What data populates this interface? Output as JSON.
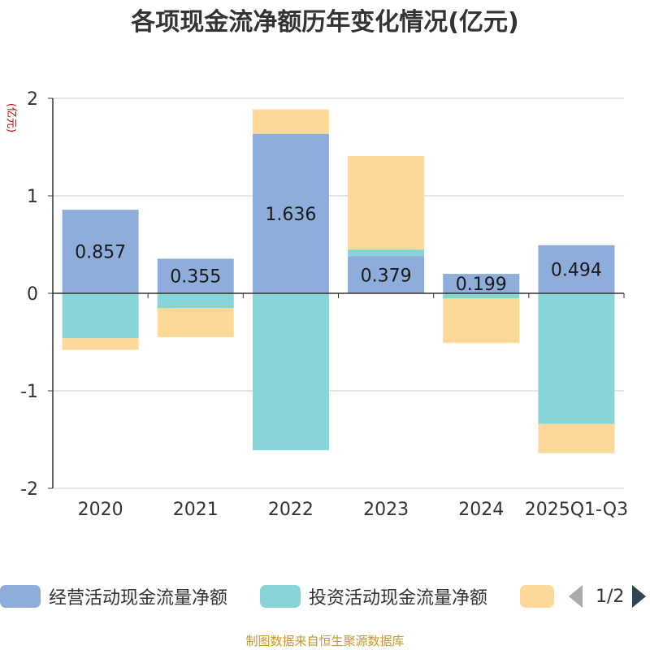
{
  "chart_data": {
    "type": "bar",
    "stacked": true,
    "title": "各项现金流净额历年变化情况(亿元)",
    "ylabel": "(亿元)",
    "ylim": [
      -2,
      2
    ],
    "yticks": [
      2,
      1,
      0,
      -1,
      -2
    ],
    "categories": [
      "2020",
      "2021",
      "2022",
      "2023",
      "2024",
      "2025Q1-Q3"
    ],
    "series": [
      {
        "name": "经营活动现金流量净额",
        "color": "#8eaddb",
        "values": [
          0.857,
          0.355,
          1.636,
          0.379,
          0.199,
          0.494
        ]
      },
      {
        "name": "投资活动现金流量净额",
        "color": "#88d5d8",
        "values": [
          -0.46,
          -0.15,
          -1.61,
          0.07,
          -0.05,
          -1.34
        ]
      },
      {
        "name": "",
        "color": "#fdd899",
        "values": [
          -0.12,
          -0.3,
          0.25,
          0.96,
          -0.46,
          -0.3
        ]
      }
    ],
    "data_labels": [
      "0.857",
      "0.355",
      "1.636",
      "0.379",
      "0.199",
      "0.494"
    ]
  },
  "legend": {
    "page": "1/2"
  },
  "source_note": "制图数据来自恒生聚源数据库"
}
